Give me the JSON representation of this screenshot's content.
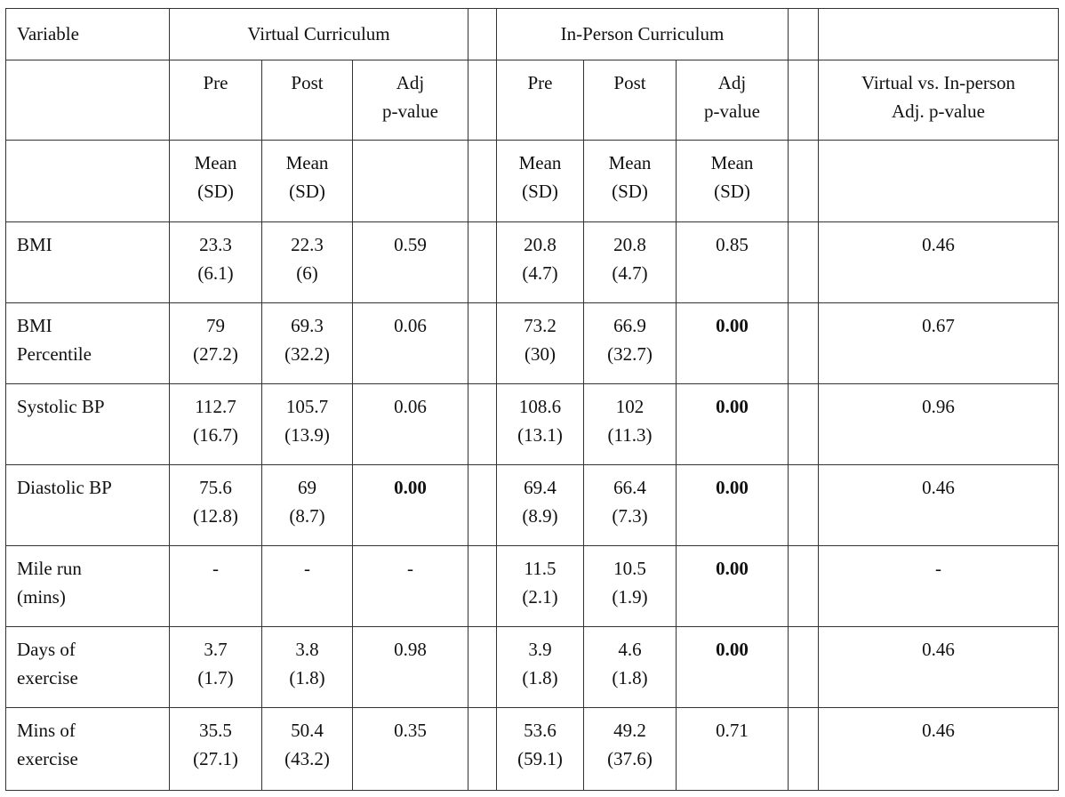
{
  "header": {
    "variable": "Variable",
    "virtual": "Virtual Curriculum",
    "inperson": "In-Person Curriculum",
    "pre": "Pre",
    "post": "Post",
    "adj_l1": "Adj",
    "adj_l2": "p-value",
    "vvi_l1": "Virtual vs. In-person",
    "vvi_l2": "Adj. p-value",
    "mean": "Mean",
    "sd": "(SD)"
  },
  "rows": [
    {
      "l1": "BMI",
      "l2": "",
      "vp1": "23.3",
      "vp2": "(6.1)",
      "vq1": "22.3",
      "vq2": "(6)",
      "vadj": "0.59",
      "ip1": "20.8",
      "ip2": "(4.7)",
      "iq1": "20.8",
      "iq2": "(4.7)",
      "iadj": "0.85",
      "cmp": "0.46"
    },
    {
      "l1": "BMI",
      "l2": "Percentile",
      "vp1": "79",
      "vp2": "(27.2)",
      "vq1": "69.3",
      "vq2": "(32.2)",
      "vadj": "0.06",
      "ip1": "73.2",
      "ip2": "(30)",
      "iq1": "66.9",
      "iq2": "(32.7)",
      "iadj": "0.00",
      "cmp": "0.67"
    },
    {
      "l1": "Systolic BP",
      "l2": "",
      "vp1": "112.7",
      "vp2": "(16.7)",
      "vq1": "105.7",
      "vq2": "(13.9)",
      "vadj": "0.06",
      "ip1": "108.6",
      "ip2": "(13.1)",
      "iq1": "102",
      "iq2": "(11.3)",
      "iadj": "0.00",
      "cmp": "0.96"
    },
    {
      "l1": "Diastolic BP",
      "l2": "",
      "vp1": "75.6",
      "vp2": "(12.8)",
      "vq1": "69",
      "vq2": "(8.7)",
      "vadj": "0.00",
      "ip1": "69.4",
      "ip2": "(8.9)",
      "iq1": "66.4",
      "iq2": "(7.3)",
      "iadj": "0.00",
      "cmp": "0.46"
    },
    {
      "l1": "Mile run",
      "l2": "(mins)",
      "vp1": "-",
      "vp2": "",
      "vq1": "-",
      "vq2": "",
      "vadj": "-",
      "ip1": "11.5",
      "ip2": "(2.1)",
      "iq1": "10.5",
      "iq2": "(1.9)",
      "iadj": "0.00",
      "cmp": "-"
    },
    {
      "l1": "Days of",
      "l2": "exercise",
      "vp1": "3.7",
      "vp2": "(1.7)",
      "vq1": "3.8",
      "vq2": "(1.8)",
      "vadj": "0.98",
      "ip1": "3.9",
      "ip2": "(1.8)",
      "iq1": "4.6",
      "iq2": "(1.8)",
      "iadj": "0.00",
      "cmp": "0.46"
    },
    {
      "l1": "Mins of",
      "l2": "exercise",
      "vp1": "35.5",
      "vp2": "(27.1)",
      "vq1": "50.4",
      "vq2": "(43.2)",
      "vadj": "0.35",
      "ip1": "53.6",
      "ip2": "(59.1)",
      "iq1": "49.2",
      "iq2": "(37.6)",
      "iadj": "0.71",
      "cmp": "0.46"
    }
  ]
}
